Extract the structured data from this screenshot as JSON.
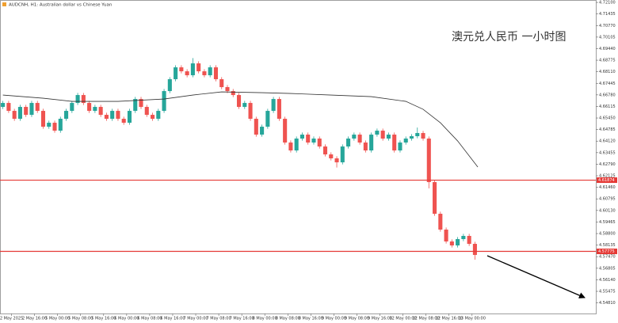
{
  "chart_data": {
    "type": "candlestick",
    "title": "AUDCNH, H1: Australian dollar vs Chinese Yuan",
    "annotation": "澳元兑人民币 一小时图",
    "up_color": "#26a69a",
    "down_color": "#ef5350",
    "x": [
      0,
      2,
      4,
      6,
      8,
      10,
      12,
      14,
      16,
      18,
      20,
      22,
      24,
      26,
      28,
      30,
      32,
      34,
      36,
      38,
      40,
      42,
      44,
      46,
      48,
      50,
      52,
      54,
      56,
      58,
      60,
      62,
      64,
      66,
      68,
      70,
      72,
      74,
      76,
      78,
      80,
      82,
      84,
      86,
      88,
      90,
      92,
      94,
      96,
      98,
      100,
      102,
      104,
      106,
      108,
      110,
      112,
      114,
      116,
      118,
      120,
      122,
      124,
      126,
      128,
      130,
      132,
      134,
      136,
      138,
      140,
      142,
      144,
      146,
      148,
      150,
      152,
      154,
      156,
      158,
      160,
      162,
      164
    ],
    "open": [
      4.66088,
      4.66316,
      4.6586,
      4.65405,
      4.66088,
      4.65632,
      4.66316,
      4.6586,
      4.64949,
      4.65177,
      4.64721,
      4.65405,
      4.6586,
      4.66316,
      4.66771,
      4.66316,
      4.6586,
      4.66088,
      4.65632,
      4.65405,
      4.6586,
      4.65405,
      4.65177,
      4.6586,
      4.66543,
      4.66088,
      4.65632,
      4.65405,
      4.6586,
      4.66999,
      4.67682,
      4.68365,
      4.68137,
      4.6791,
      4.68593,
      4.68137,
      4.6791,
      4.68365,
      4.67682,
      4.67227,
      4.66999,
      4.66771,
      4.66088,
      4.66316,
      4.65405,
      4.64494,
      4.64949,
      4.6586,
      4.66543,
      4.65405,
      4.64038,
      4.63583,
      4.64266,
      4.64494,
      4.64038,
      4.64266,
      4.6381,
      4.63355,
      4.63127,
      4.62899,
      4.6381,
      4.64266,
      4.64494,
      4.64038,
      4.63583,
      4.64494,
      4.64721,
      4.64266,
      4.64494,
      4.63583,
      4.64038,
      4.64266,
      4.64403,
      4.64585,
      4.64266,
      4.61761,
      4.59939,
      4.59028,
      4.58345,
      4.58117,
      4.58481,
      4.58664,
      4.58208
    ],
    "high": [
      4.66436,
      4.66436,
      4.6598,
      4.66208,
      4.66208,
      4.66436,
      4.66436,
      4.6598,
      4.65297,
      4.65297,
      4.65525,
      4.6598,
      4.66436,
      4.66891,
      4.66891,
      4.66436,
      4.66208,
      4.66208,
      4.65752,
      4.6598,
      4.6598,
      4.65525,
      4.6598,
      4.66663,
      4.66663,
      4.66208,
      4.65752,
      4.6598,
      4.67119,
      4.67802,
      4.68485,
      4.68485,
      4.68257,
      4.689,
      4.68713,
      4.68257,
      4.68485,
      4.68485,
      4.67802,
      4.67347,
      4.67119,
      4.66891,
      4.66436,
      4.66436,
      4.65525,
      4.65069,
      4.6598,
      4.66663,
      4.66663,
      4.65525,
      4.64158,
      4.64386,
      4.64614,
      4.64614,
      4.64386,
      4.64386,
      4.6393,
      4.63475,
      4.63247,
      4.6393,
      4.64386,
      4.64614,
      4.64614,
      4.64158,
      4.64614,
      4.64841,
      4.64841,
      4.64614,
      4.64614,
      4.64158,
      4.64386,
      4.64523,
      4.649,
      4.64705,
      4.64386,
      4.61881,
      4.60059,
      4.59148,
      4.58465,
      4.58601,
      4.58784,
      4.58784,
      4.58328
    ],
    "low": [
      4.65968,
      4.6574,
      4.65285,
      4.65285,
      4.65512,
      4.65512,
      4.6574,
      4.64829,
      4.64829,
      4.64601,
      4.64601,
      4.65285,
      4.6574,
      4.66196,
      4.66196,
      4.6574,
      4.6574,
      4.65512,
      4.65285,
      4.65285,
      4.65285,
      4.65057,
      4.65057,
      4.6574,
      4.65968,
      4.65512,
      4.65285,
      4.65285,
      4.6574,
      4.66879,
      4.67562,
      4.68017,
      4.6779,
      4.6779,
      4.68017,
      4.6779,
      4.6779,
      4.67562,
      4.67107,
      4.66879,
      4.66651,
      4.65968,
      4.65968,
      4.65285,
      4.64374,
      4.64374,
      4.64829,
      4.6574,
      4.65285,
      4.63918,
      4.63463,
      4.63463,
      4.64146,
      4.63918,
      4.63918,
      4.6369,
      4.63235,
      4.63007,
      4.626,
      4.62779,
      4.6369,
      4.64146,
      4.63918,
      4.63463,
      4.63463,
      4.64374,
      4.64146,
      4.64146,
      4.63463,
      4.63463,
      4.63918,
      4.64146,
      4.64283,
      4.64146,
      4.614,
      4.59819,
      4.58908,
      4.58225,
      4.57997,
      4.57997,
      4.58361,
      4.58088,
      4.573
    ],
    "close": [
      4.66316,
      4.6586,
      4.65405,
      4.66088,
      4.65632,
      4.66316,
      4.6586,
      4.64949,
      4.65177,
      4.64721,
      4.65405,
      4.6586,
      4.66316,
      4.66771,
      4.66316,
      4.6586,
      4.66088,
      4.65632,
      4.65405,
      4.6586,
      4.65405,
      4.65177,
      4.6586,
      4.66543,
      4.66088,
      4.65632,
      4.65405,
      4.6586,
      4.66999,
      4.67682,
      4.68365,
      4.68137,
      4.6791,
      4.68593,
      4.68137,
      4.6791,
      4.68365,
      4.67682,
      4.67227,
      4.66999,
      4.66771,
      4.66088,
      4.66316,
      4.65405,
      4.64494,
      4.64949,
      4.6586,
      4.66543,
      4.65405,
      4.64038,
      4.63583,
      4.64266,
      4.64494,
      4.64038,
      4.64266,
      4.6381,
      4.63355,
      4.63127,
      4.62899,
      4.6381,
      4.64266,
      4.64494,
      4.64038,
      4.63583,
      4.64494,
      4.64721,
      4.64266,
      4.64494,
      4.63583,
      4.64038,
      4.64266,
      4.64403,
      4.64585,
      4.64266,
      4.61761,
      4.59939,
      4.59028,
      4.58345,
      4.58117,
      4.58481,
      4.58664,
      4.58208,
      4.5757
    ],
    "ma": {
      "color": "#333333",
      "x": [
        0,
        14,
        24,
        40,
        56,
        66,
        76,
        90,
        100,
        114,
        128,
        140,
        146,
        152,
        158,
        165
      ],
      "values": [
        4.66771,
        4.66589,
        4.66407,
        4.66407,
        4.66543,
        4.66771,
        4.66953,
        4.66908,
        4.66862,
        4.66771,
        4.6668,
        4.66407,
        4.65951,
        4.65177,
        4.64129,
        4.62626
      ]
    },
    "levels": [
      {
        "value": 4.61874,
        "color": "#e53935"
      },
      {
        "value": 4.57775,
        "color": "#e53935"
      }
    ],
    "xlim": [
      -1,
      206
    ],
    "ylim": [
      4.542,
      4.7224
    ],
    "xticks": [
      {
        "value": 3,
        "label": "2 May 2025"
      },
      {
        "value": 11,
        "label": "2 May 16:00"
      },
      {
        "value": 19,
        "label": "5 May 00:00"
      },
      {
        "value": 27,
        "label": "5 May 08:00"
      },
      {
        "value": 35,
        "label": "5 May 16:00"
      },
      {
        "value": 43,
        "label": "6 May 00:00"
      },
      {
        "value": 51,
        "label": "6 May 08:00"
      },
      {
        "value": 59,
        "label": "6 May 16:00"
      },
      {
        "value": 67,
        "label": "7 May 00:00"
      },
      {
        "value": 75,
        "label": "7 May 08:00"
      },
      {
        "value": 83,
        "label": "7 May 16:00"
      },
      {
        "value": 91,
        "label": "8 May 00:00"
      },
      {
        "value": 99,
        "label": "8 May 08:00"
      },
      {
        "value": 107,
        "label": "8 May 16:00"
      },
      {
        "value": 115,
        "label": "9 May 00:00"
      },
      {
        "value": 123,
        "label": "9 May 08:00"
      },
      {
        "value": 131,
        "label": "9 May 16:00"
      },
      {
        "value": 139,
        "label": "12 May 00:00"
      },
      {
        "value": 147,
        "label": "12 May 08:00"
      },
      {
        "value": 155,
        "label": "12 May 16:00"
      },
      {
        "value": 163,
        "label": "13 May 00:00"
      }
    ],
    "yticks": [
      {
        "value": 4.721,
        "label": "4.72100"
      },
      {
        "value": 4.71435,
        "label": "4.71435"
      },
      {
        "value": 4.7077,
        "label": "4.70770"
      },
      {
        "value": 4.70105,
        "label": "4.70105"
      },
      {
        "value": 4.6944,
        "label": "4.69440"
      },
      {
        "value": 4.68775,
        "label": "4.68775"
      },
      {
        "value": 4.6811,
        "label": "4.68110"
      },
      {
        "value": 4.67445,
        "label": "4.67445"
      },
      {
        "value": 4.6678,
        "label": "4.66780"
      },
      {
        "value": 4.66115,
        "label": "4.66115"
      },
      {
        "value": 4.6545,
        "label": "4.65450"
      },
      {
        "value": 4.64785,
        "label": "4.64785"
      },
      {
        "value": 4.6412,
        "label": "4.64120"
      },
      {
        "value": 4.63455,
        "label": "4.63455"
      },
      {
        "value": 4.6279,
        "label": "4.62790"
      },
      {
        "value": 4.62125,
        "label": "4.62125"
      },
      {
        "value": 4.6146,
        "label": "4.61460"
      },
      {
        "value": 4.60795,
        "label": "4.60795"
      },
      {
        "value": 4.6013,
        "label": "4.60130"
      },
      {
        "value": 4.59465,
        "label": "4.59465"
      },
      {
        "value": 4.588,
        "label": "4.58800"
      },
      {
        "value": 4.58135,
        "label": "4.58135"
      },
      {
        "value": 4.5747,
        "label": "4.57470"
      },
      {
        "value": 4.56805,
        "label": "4.56805"
      },
      {
        "value": 4.5614,
        "label": "4.56140"
      },
      {
        "value": 4.55475,
        "label": "4.55475"
      },
      {
        "value": 4.5481,
        "label": "4.54810"
      }
    ]
  }
}
